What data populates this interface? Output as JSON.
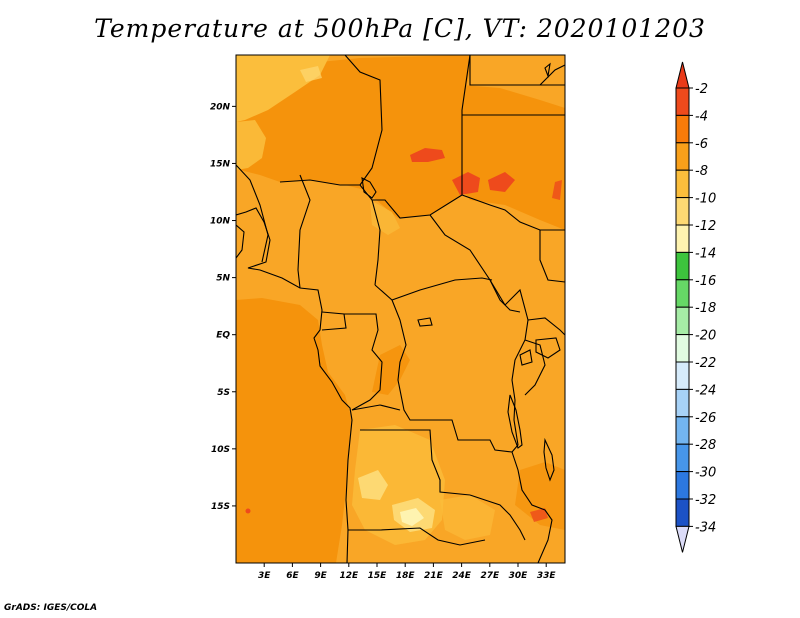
{
  "title": "Temperature at 500hPa [C], VT: 2020101203",
  "footer": "GrADS: IGES/COLA",
  "map": {
    "lat_labels": [
      {
        "label": "20N",
        "value": 20
      },
      {
        "label": "15N",
        "value": 15
      },
      {
        "label": "10N",
        "value": 10
      },
      {
        "label": "5N",
        "value": 5
      },
      {
        "label": "EQ",
        "value": 0
      },
      {
        "label": "5S",
        "value": -5
      },
      {
        "label": "10S",
        "value": -10
      },
      {
        "label": "15S",
        "value": -15
      }
    ],
    "lon_labels": [
      {
        "label": "3E",
        "value": 3
      },
      {
        "label": "6E",
        "value": 6
      },
      {
        "label": "9E",
        "value": 9
      },
      {
        "label": "12E",
        "value": 12
      },
      {
        "label": "15E",
        "value": 15
      },
      {
        "label": "18E",
        "value": 18
      },
      {
        "label": "21E",
        "value": 21
      },
      {
        "label": "24E",
        "value": 24
      },
      {
        "label": "27E",
        "value": 27
      },
      {
        "label": "30E",
        "value": 30
      },
      {
        "label": "33E",
        "value": 33
      }
    ],
    "lat_range": [
      -20,
      24.5
    ],
    "lon_range": [
      0,
      35
    ]
  },
  "colorbar": {
    "labels": [
      "-2",
      "-4",
      "-6",
      "-8",
      "-10",
      "-12",
      "-14",
      "-16",
      "-18",
      "-20",
      "-22",
      "-24",
      "-26",
      "-28",
      "-30",
      "-32",
      "-34"
    ],
    "colors": [
      "#ee4a1c",
      "#f87b0a",
      "#f9a01a",
      "#fbbe3c",
      "#fdd973",
      "#fef3b0",
      "#3dc43d",
      "#66d866",
      "#a6eca6",
      "#e1fbe1",
      "#d6ebfb",
      "#a7d2f7",
      "#73b5f0",
      "#4796ea",
      "#2c78e0",
      "#1c52c6",
      "#0b1c7a"
    ],
    "top_color": "#e93a19",
    "bottom_color": "#dcdcf8"
  },
  "field_colors": {
    "c2": "#ee4a1c",
    "c4": "#f5930c",
    "c6": "#f9a626",
    "c8": "#fbbe3c",
    "c10": "#fdd973",
    "c12": "#fef3b0"
  }
}
